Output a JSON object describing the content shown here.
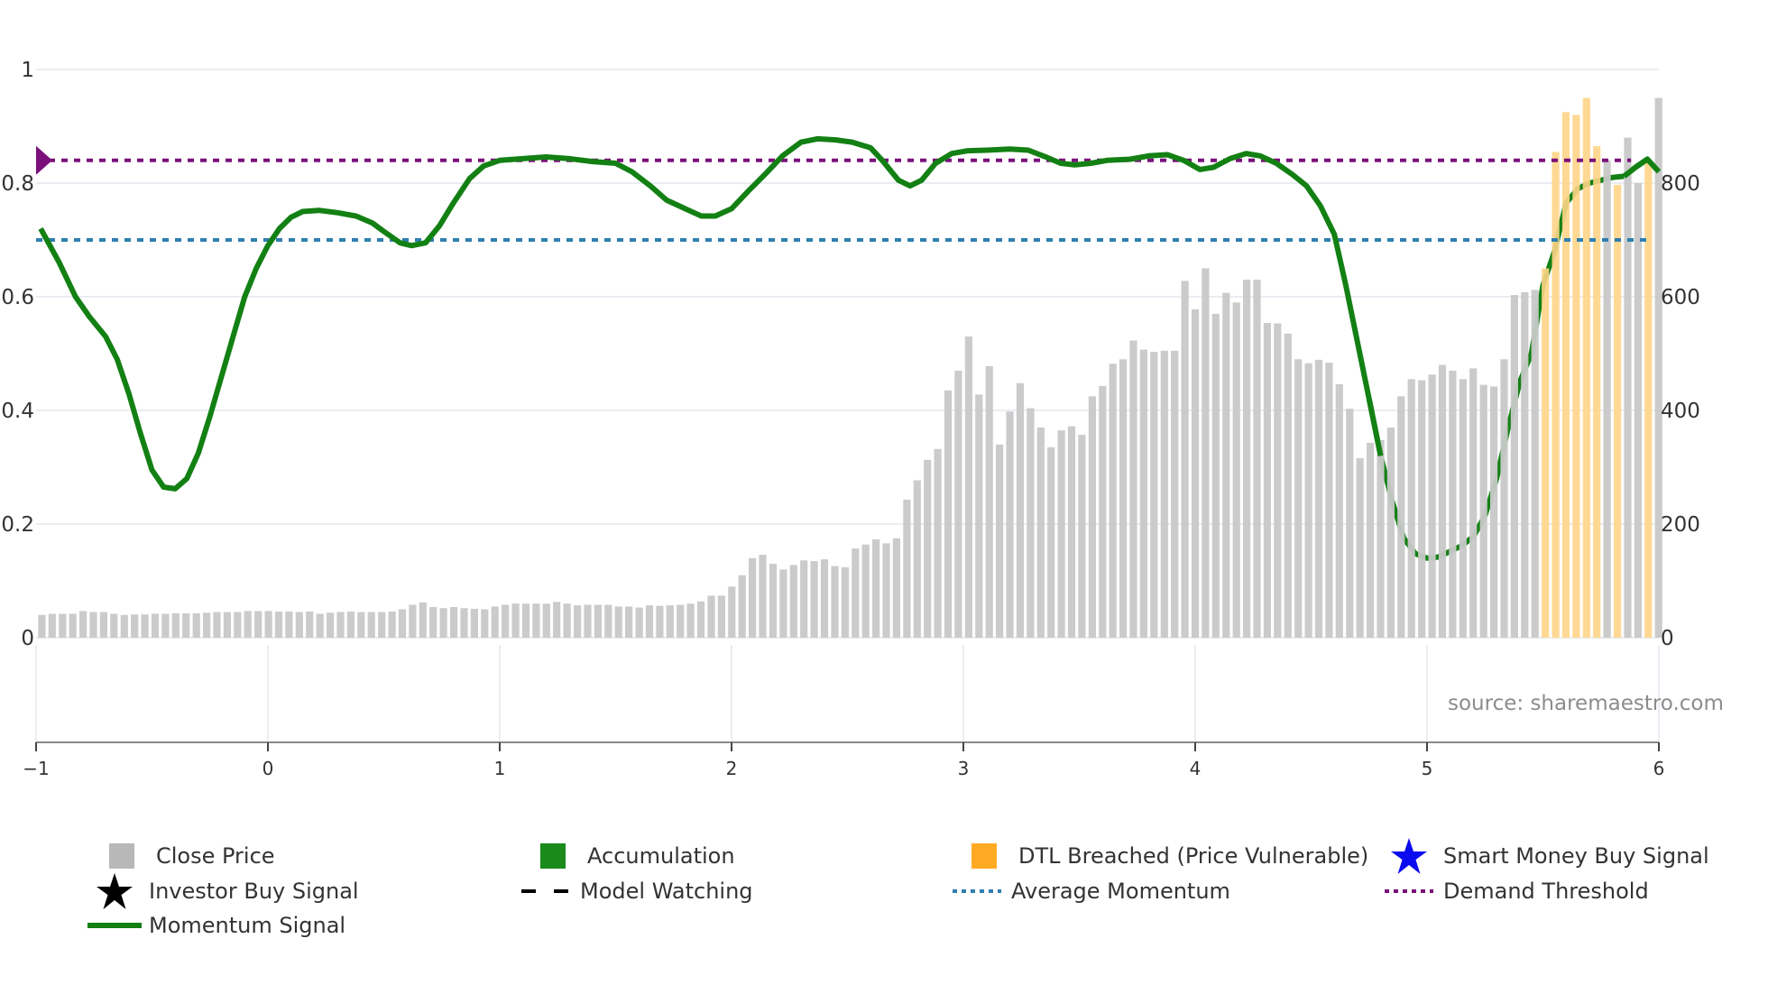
{
  "chart_data": {
    "type": "bar+line",
    "title": "",
    "xlabel": "",
    "ylabel": "",
    "x_ticks": [
      "−1",
      "0",
      "1",
      "2",
      "3",
      "4",
      "5",
      "6"
    ],
    "x_tick_values": [
      -1,
      0,
      1,
      2,
      3,
      4,
      5,
      6
    ],
    "xlim": [
      -1,
      6
    ],
    "y_left_ticks": [
      "0",
      "0.2",
      "0.4",
      "0.6",
      "0.8",
      "1"
    ],
    "y_left_tick_values": [
      0,
      0.2,
      0.4,
      0.6,
      0.8,
      1.0
    ],
    "ylim_left": [
      -0.184,
      1.0
    ],
    "y_right_ticks": [
      "0",
      "200",
      "400",
      "600",
      "800"
    ],
    "y_right_tick_values": [
      0,
      200,
      400,
      600,
      800
    ],
    "ylim_right": [
      -184,
      1000
    ],
    "grid": true,
    "legend_position": "bottom",
    "average_momentum": 0.7,
    "demand_threshold": 0.84,
    "close_price": {
      "x_start": -0.975,
      "x_step": 0.04442,
      "values": [
        40,
        42,
        42,
        42,
        47,
        45,
        45,
        42,
        40,
        41,
        41,
        42,
        42,
        43,
        43,
        43,
        44,
        45,
        45,
        45,
        47,
        47,
        47,
        46,
        46,
        45,
        46,
        42,
        44,
        45,
        46,
        45,
        45,
        45,
        46,
        50,
        58,
        62,
        54,
        52,
        54,
        52,
        51,
        50,
        55,
        58,
        60,
        60,
        60,
        60,
        63,
        60,
        57,
        58,
        58,
        58,
        55,
        55,
        53,
        57,
        56,
        57,
        58,
        60,
        64,
        74,
        74,
        90,
        110,
        140,
        146,
        130,
        120,
        128,
        136,
        135,
        138,
        126,
        124,
        157,
        164,
        173,
        166,
        175,
        243,
        277,
        313,
        332,
        435,
        470,
        530,
        428,
        478,
        340,
        398,
        448,
        404,
        370,
        335,
        365,
        372,
        357,
        425,
        443,
        482,
        490,
        523,
        507,
        503,
        505,
        505,
        628,
        578,
        650,
        570,
        607,
        590,
        630,
        630,
        554,
        553,
        535,
        490,
        483,
        489,
        484,
        446,
        403,
        316,
        343,
        348,
        370,
        425,
        455,
        453,
        463,
        480,
        470,
        455,
        474,
        445,
        442,
        490,
        603,
        608,
        612,
        650,
        855,
        925,
        920,
        950,
        865,
        840,
        797,
        880,
        800,
        840,
        950
      ],
      "dtl_breached_flags": [
        0,
        0,
        0,
        0,
        0,
        0,
        0,
        0,
        0,
        0,
        0,
        0,
        0,
        0,
        0,
        0,
        0,
        0,
        0,
        0,
        0,
        0,
        0,
        0,
        0,
        0,
        0,
        0,
        0,
        0,
        0,
        0,
        0,
        0,
        0,
        0,
        0,
        0,
        0,
        0,
        0,
        0,
        0,
        0,
        0,
        0,
        0,
        0,
        0,
        0,
        0,
        0,
        0,
        0,
        0,
        0,
        0,
        0,
        0,
        0,
        0,
        0,
        0,
        0,
        0,
        0,
        0,
        0,
        0,
        0,
        0,
        0,
        0,
        0,
        0,
        0,
        0,
        0,
        0,
        0,
        0,
        0,
        0,
        0,
        0,
        0,
        0,
        0,
        0,
        0,
        0,
        0,
        0,
        0,
        0,
        0,
        0,
        0,
        0,
        0,
        0,
        0,
        0,
        0,
        0,
        0,
        0,
        0,
        0,
        0,
        0,
        0,
        0,
        0,
        0,
        0,
        0,
        0,
        0,
        0,
        0,
        0,
        0,
        0,
        0,
        0,
        0,
        0,
        0,
        0,
        0,
        0,
        0,
        0,
        0,
        0,
        0,
        0,
        0,
        0,
        0,
        0,
        0,
        0,
        0,
        0,
        1,
        1,
        1,
        1,
        1,
        1,
        0,
        1,
        0,
        0,
        1
      ]
    },
    "momentum_signal": {
      "points": [
        [
          -0.98,
          0.72
        ],
        [
          -0.9,
          0.66
        ],
        [
          -0.83,
          0.6
        ],
        [
          -0.77,
          0.565
        ],
        [
          -0.7,
          0.53
        ],
        [
          -0.65,
          0.49
        ],
        [
          -0.6,
          0.43
        ],
        [
          -0.55,
          0.36
        ],
        [
          -0.5,
          0.295
        ],
        [
          -0.45,
          0.265
        ],
        [
          -0.4,
          0.262
        ],
        [
          -0.35,
          0.28
        ],
        [
          -0.3,
          0.325
        ],
        [
          -0.25,
          0.39
        ],
        [
          -0.2,
          0.46
        ],
        [
          -0.15,
          0.53
        ],
        [
          -0.1,
          0.6
        ],
        [
          -0.05,
          0.65
        ],
        [
          0,
          0.69
        ],
        [
          0.05,
          0.72
        ],
        [
          0.1,
          0.74
        ],
        [
          0.15,
          0.75
        ],
        [
          0.22,
          0.752
        ],
        [
          0.3,
          0.748
        ],
        [
          0.38,
          0.742
        ],
        [
          0.45,
          0.73
        ],
        [
          0.5,
          0.715
        ],
        [
          0.57,
          0.695
        ],
        [
          0.62,
          0.69
        ],
        [
          0.68,
          0.695
        ],
        [
          0.74,
          0.725
        ],
        [
          0.8,
          0.765
        ],
        [
          0.87,
          0.808
        ],
        [
          0.93,
          0.83
        ],
        [
          1.0,
          0.84
        ],
        [
          1.1,
          0.843
        ],
        [
          1.2,
          0.846
        ],
        [
          1.3,
          0.843
        ],
        [
          1.4,
          0.838
        ],
        [
          1.5,
          0.835
        ],
        [
          1.57,
          0.82
        ],
        [
          1.65,
          0.795
        ],
        [
          1.72,
          0.77
        ],
        [
          1.8,
          0.755
        ],
        [
          1.87,
          0.742
        ],
        [
          1.93,
          0.742
        ],
        [
          2.0,
          0.755
        ],
        [
          2.07,
          0.785
        ],
        [
          2.15,
          0.818
        ],
        [
          2.22,
          0.848
        ],
        [
          2.3,
          0.872
        ],
        [
          2.37,
          0.878
        ],
        [
          2.45,
          0.876
        ],
        [
          2.52,
          0.872
        ],
        [
          2.6,
          0.862
        ],
        [
          2.65,
          0.84
        ],
        [
          2.72,
          0.805
        ],
        [
          2.77,
          0.795
        ],
        [
          2.82,
          0.805
        ],
        [
          2.88,
          0.835
        ],
        [
          2.95,
          0.852
        ],
        [
          3.02,
          0.857
        ],
        [
          3.1,
          0.858
        ],
        [
          3.2,
          0.86
        ],
        [
          3.28,
          0.858
        ],
        [
          3.35,
          0.847
        ],
        [
          3.42,
          0.835
        ],
        [
          3.48,
          0.832
        ],
        [
          3.55,
          0.835
        ],
        [
          3.62,
          0.84
        ],
        [
          3.72,
          0.842
        ],
        [
          3.8,
          0.848
        ],
        [
          3.88,
          0.85
        ],
        [
          3.95,
          0.84
        ],
        [
          4.02,
          0.824
        ],
        [
          4.08,
          0.828
        ],
        [
          4.15,
          0.843
        ],
        [
          4.22,
          0.852
        ],
        [
          4.28,
          0.848
        ],
        [
          4.35,
          0.835
        ],
        [
          4.42,
          0.815
        ],
        [
          4.48,
          0.795
        ],
        [
          4.54,
          0.76
        ],
        [
          4.6,
          0.71
        ],
        [
          4.65,
          0.62
        ],
        [
          4.7,
          0.52
        ],
        [
          4.75,
          0.42
        ],
        [
          4.8,
          0.32
        ],
        [
          4.85,
          0.24
        ],
        [
          4.9,
          0.175
        ],
        [
          4.95,
          0.148
        ],
        [
          5.0,
          0.14
        ],
        [
          5.05,
          0.142
        ],
        [
          5.1,
          0.152
        ],
        [
          5.15,
          0.162
        ],
        [
          5.2,
          0.178
        ],
        [
          5.25,
          0.215
        ],
        [
          5.3,
          0.28
        ],
        [
          5.35,
          0.37
        ],
        [
          5.4,
          0.45
        ],
        [
          5.45,
          0.5
        ],
        [
          5.5,
          0.62
        ],
        [
          5.55,
          0.68
        ],
        [
          5.6,
          0.765
        ],
        [
          5.65,
          0.79
        ],
        [
          5.7,
          0.8
        ],
        [
          5.75,
          0.805
        ],
        [
          5.8,
          0.81
        ],
        [
          5.85,
          0.812
        ],
        [
          5.9,
          0.828
        ],
        [
          5.95,
          0.842
        ],
        [
          6.0,
          0.82
        ]
      ],
      "color": "#138013",
      "faded_from_x": 4.78
    },
    "legend": [
      {
        "label": "Close Price",
        "symbol": "square",
        "color": "#b8b8b8"
      },
      {
        "label": "Accumulation",
        "symbol": "square",
        "color": "#1a8a1a"
      },
      {
        "label": "DTL Breached (Price Vulnerable)",
        "symbol": "square",
        "color": "#ffaa22"
      },
      {
        "label": "Smart Money Buy Signal",
        "symbol": "star",
        "color": "#0b0bf0"
      },
      {
        "label": "Investor Buy Signal",
        "symbol": "star",
        "color": "#000000"
      },
      {
        "label": "Model Watching",
        "symbol": "dash",
        "color": "#000000"
      },
      {
        "label": "Average Momentum",
        "symbol": "dot",
        "color": "#2f7fb0"
      },
      {
        "label": "Demand Threshold",
        "symbol": "dot",
        "color": "#7b107b"
      },
      {
        "label": "Momentum Signal",
        "symbol": "line",
        "color": "#138013"
      }
    ],
    "annotation": "source: sharemaestro.com"
  },
  "colors": {
    "close_price_bar": "#c8c8c8",
    "dtl_bar": "#ffd587",
    "momentum": "#138013",
    "average_momentum": "#2f7fb0",
    "demand_threshold": "#7b107b",
    "grid": "#eaedf2",
    "axis": "#8a8a8a"
  }
}
